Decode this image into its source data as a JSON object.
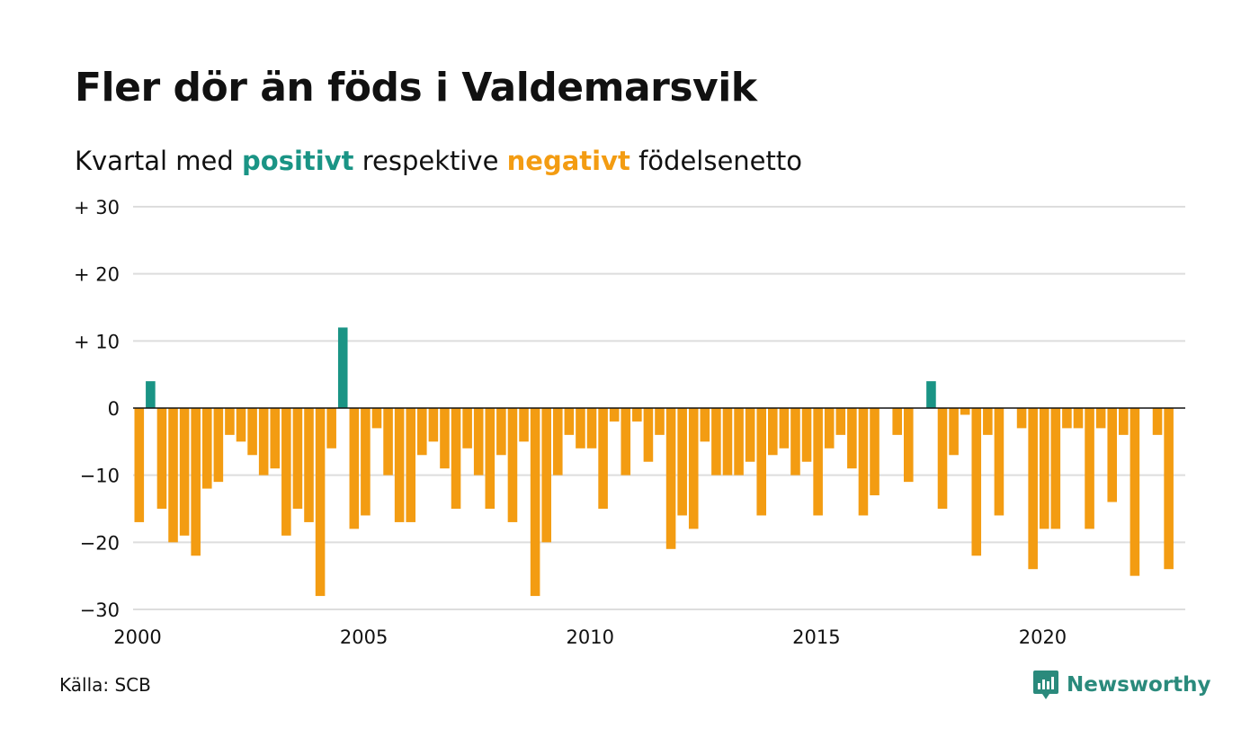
{
  "title": "Fler dör än föds i Valdemarsvik",
  "subtitle": {
    "prefix": "Kvartal med ",
    "positive": "positivt",
    "middle": " respektive ",
    "negative": "negativt",
    "suffix": " födelsenetto"
  },
  "source": "Källa: SCB",
  "brand": {
    "name": "Newsworthy",
    "icon": "newsworthy-logo-icon"
  },
  "colors": {
    "positive": "#1a9485",
    "negative": "#f39c12",
    "grid": "#dddddd",
    "axis": "#111111"
  },
  "chart_data": {
    "type": "bar",
    "x_start": 2000,
    "x_step": "quarter",
    "xlim": [
      2000,
      2023.25
    ],
    "ylim": [
      -30,
      30
    ],
    "y_ticks": [
      -30,
      -20,
      -10,
      0,
      10,
      20,
      30
    ],
    "y_tick_labels": [
      "−30",
      "−20",
      "−10",
      "0",
      "+ 10",
      "+ 20",
      "+ 30"
    ],
    "x_ticks": [
      2000,
      2005,
      2010,
      2015,
      2020
    ],
    "x_tick_labels": [
      "2000",
      "2005",
      "2010",
      "2015",
      "2020"
    ],
    "grid": true,
    "values": [
      -17,
      4,
      -15,
      -20,
      -19,
      -22,
      -12,
      -11,
      -4,
      -5,
      -7,
      -10,
      -9,
      -19,
      -15,
      -17,
      -28,
      -6,
      12,
      -18,
      -16,
      -3,
      -10,
      -17,
      -17,
      -7,
      -5,
      -9,
      -15,
      -6,
      -10,
      -15,
      -7,
      -17,
      -5,
      -28,
      -20,
      -10,
      -4,
      -6,
      -6,
      -15,
      -2,
      -10,
      -2,
      -8,
      -4,
      -21,
      -16,
      -18,
      -5,
      -10,
      -10,
      -10,
      -8,
      -16,
      -7,
      -6,
      -10,
      -8,
      -16,
      -6,
      -4,
      -9,
      -16,
      -13,
      0,
      -4,
      -11,
      0,
      4,
      -15,
      -7,
      -1,
      -22,
      -4,
      -16,
      0,
      -3,
      -24,
      -18,
      -18,
      -3,
      -3,
      -18,
      -3,
      -14,
      -4,
      -25,
      0,
      -4,
      -24
    ]
  }
}
